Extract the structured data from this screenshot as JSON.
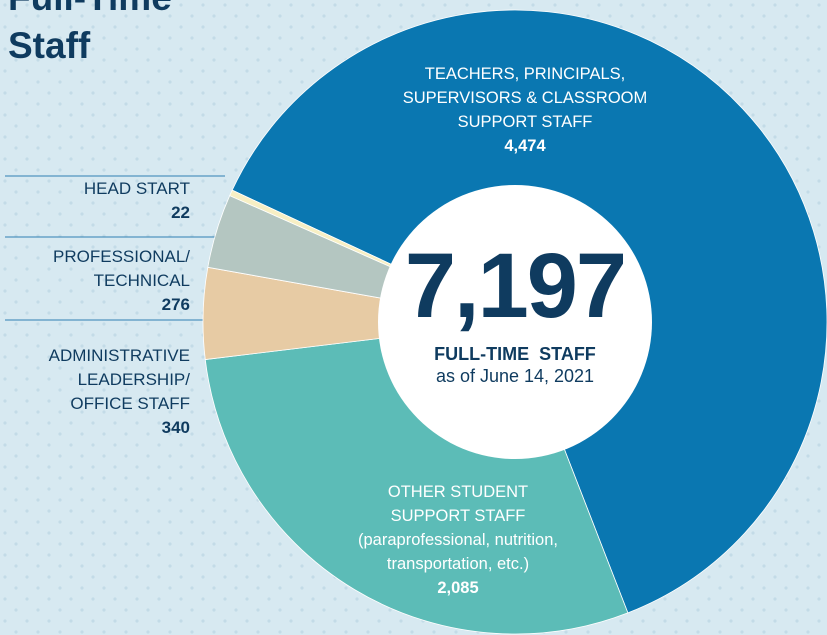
{
  "chart_data": {
    "type": "donut",
    "title_lines": [
      "Full-Time",
      "Staff"
    ],
    "categories": [
      "TEACHERS, PRINCIPALS,\nSUPERVISORS & CLASSROOM\nSUPPORT STAFF",
      "OTHER STUDENT\nSUPPORT STAFF\n(paraprofessional, nutrition,\ntransportation, etc.)",
      "ADMINISTRATIVE\nLEADERSHIP/\nOFFICE STAFF",
      "PROFESSIONAL/\nTECHNICAL",
      "HEAD START"
    ],
    "values": [
      4474,
      2085,
      340,
      276,
      22
    ],
    "value_labels": [
      "4,474",
      "2,085",
      "340",
      "276",
      "22"
    ],
    "colors": [
      "#0a77b1",
      "#5cbcb7",
      "#e7cba4",
      "#b4c6c1",
      "#f7efc4"
    ],
    "center_total": "7,197",
    "center_caption": "FULL-TIME  STAFF",
    "center_date": "as of June 14, 2021"
  }
}
